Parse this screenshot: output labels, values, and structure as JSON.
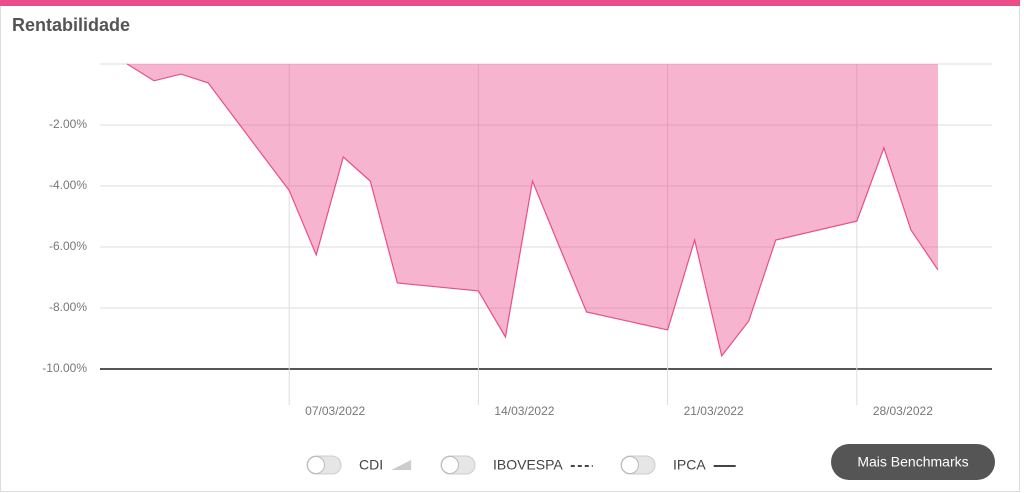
{
  "chart_data": {
    "type": "area",
    "title": "Rentabilidade",
    "x": [
      "2022-03-01",
      "2022-03-02",
      "2022-03-03",
      "2022-03-04",
      "2022-03-07",
      "2022-03-08",
      "2022-03-09",
      "2022-03-10",
      "2022-03-11",
      "2022-03-14",
      "2022-03-15",
      "2022-03-16",
      "2022-03-17",
      "2022-03-18",
      "2022-03-21",
      "2022-03-22",
      "2022-03-23",
      "2022-03-24",
      "2022-03-25",
      "2022-03-28",
      "2022-03-29",
      "2022-03-30",
      "2022-03-31"
    ],
    "values": [
      0.0,
      -0.55,
      -0.33,
      -0.62,
      -4.15,
      -6.26,
      -3.05,
      -3.84,
      -7.18,
      -7.44,
      -8.95,
      -3.84,
      -6.0,
      -8.13,
      -8.72,
      -5.77,
      -9.57,
      -8.43,
      -5.77,
      -5.15,
      -2.75,
      -5.44,
      -6.75
    ],
    "color": "#ec4d8a",
    "xlim": [
      "2022-02-28",
      "2022-04-02"
    ],
    "xticks": [
      {
        "value": "2022-03-07",
        "label": "07/03/2022"
      },
      {
        "value": "2022-03-14",
        "label": "14/03/2022"
      },
      {
        "value": "2022-03-21",
        "label": "21/03/2022"
      },
      {
        "value": "2022-03-28",
        "label": "28/03/2022"
      }
    ],
    "ylim": [
      -10,
      0
    ],
    "yticks": [
      {
        "value": -10,
        "label": "-10.00%"
      },
      {
        "value": -8,
        "label": "-8.00%"
      },
      {
        "value": -6,
        "label": "-6.00%"
      },
      {
        "value": -4,
        "label": "-4.00%"
      },
      {
        "value": -2,
        "label": "-2.00%"
      }
    ],
    "grid": true,
    "benchmarks": [
      "CDI",
      "IBOVESPA",
      "IPCA"
    ],
    "button": "Mais Benchmarks"
  }
}
